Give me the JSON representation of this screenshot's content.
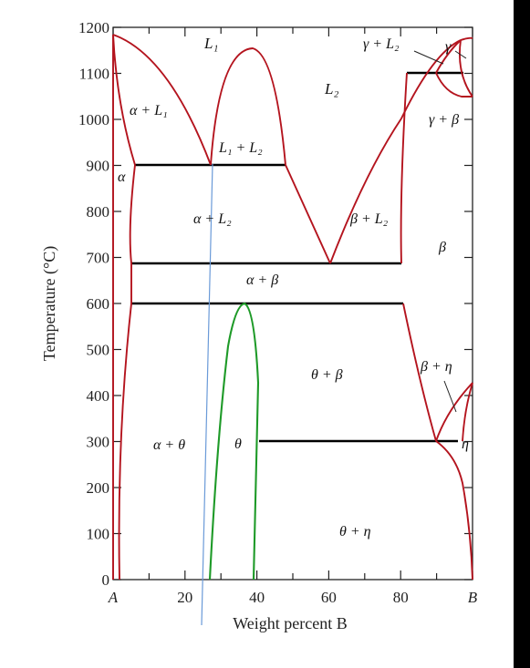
{
  "chart_data": {
    "type": "phase-diagram",
    "xlabel": "Weight percent B",
    "ylabel": "Temperature (°C)",
    "xlim": [
      0,
      100
    ],
    "ylim": [
      0,
      1200
    ],
    "x_ticks": [
      {
        "value": 0,
        "label": "A"
      },
      {
        "value": 20,
        "label": "20"
      },
      {
        "value": 40,
        "label": "40"
      },
      {
        "value": 60,
        "label": "60"
      },
      {
        "value": 80,
        "label": "80"
      },
      {
        "value": 100,
        "label": "B"
      }
    ],
    "y_ticks": [
      0,
      100,
      200,
      300,
      400,
      500,
      600,
      700,
      800,
      900,
      1000,
      1100,
      1200
    ],
    "regions": [
      {
        "label": "L₁"
      },
      {
        "label": "L₂"
      },
      {
        "label": "α + L₁"
      },
      {
        "label": "L₁ + L₂"
      },
      {
        "label": "α"
      },
      {
        "label": "α + L₂"
      },
      {
        "label": "β + L₂"
      },
      {
        "label": "β"
      },
      {
        "label": "α + β"
      },
      {
        "label": "θ + β"
      },
      {
        "label": "β + η"
      },
      {
        "label": "α + θ"
      },
      {
        "label": "θ"
      },
      {
        "label": "η"
      },
      {
        "label": "θ + η"
      },
      {
        "label": "γ + L₂"
      },
      {
        "label": "γ"
      },
      {
        "label": "γ + β"
      }
    ],
    "invariant_lines": [
      {
        "temperature": 900,
        "x_from": 6,
        "x_to": 47
      },
      {
        "temperature": 690,
        "x_from": 5,
        "x_to": 79
      },
      {
        "temperature": 600,
        "x_from": 5,
        "x_to": 79
      },
      {
        "temperature": 300,
        "x_from": 40,
        "x_to": 94
      },
      {
        "temperature": 1100,
        "x_from": 80,
        "x_to": 96
      }
    ],
    "key_points": {
      "A_melting": [
        0,
        1180
      ],
      "monotectic": [
        26,
        900
      ],
      "L1_L2_miscibility_max": [
        38,
        1155
      ],
      "eutectic": [
        59,
        690
      ],
      "theta_max": [
        36,
        600
      ],
      "eutectoid": [
        89,
        300
      ]
    },
    "marker_line_x": [
      24,
      26
    ],
    "colors": {
      "boundary": "#b4141e",
      "theta": "#1e9a28",
      "invariant": "#000000",
      "marker": "#6a9ad8"
    }
  }
}
